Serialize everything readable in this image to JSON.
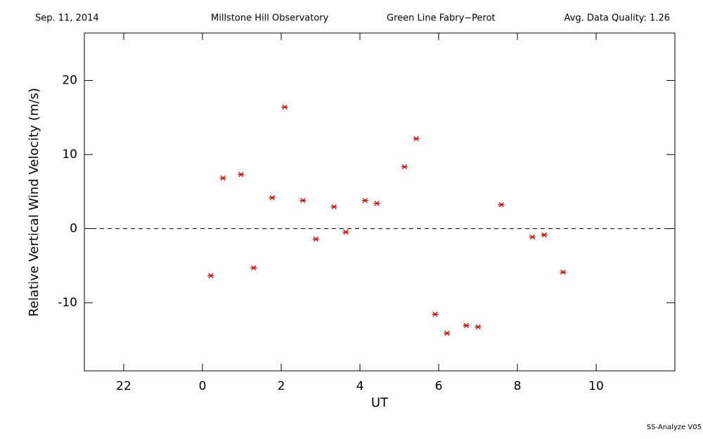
{
  "chart_data": {
    "type": "scatter",
    "header": [
      "Sep. 11, 2014",
      "Millstone Hill Observatory",
      "Green Line Fabry−Perot",
      "Avg. Data Quality: 1.26"
    ],
    "footer": "SS-Analyze V05",
    "xlabel": "UT",
    "ylabel": "Relative Vertical Wind Velocity (m/s)",
    "xlim": [
      -3,
      12
    ],
    "xticks": [
      {
        "value": -2,
        "label": "22"
      },
      0,
      2,
      4,
      6,
      8,
      10
    ],
    "ylim": [
      -19.2,
      26.4
    ],
    "yticks": [
      -10,
      0,
      10,
      20
    ],
    "reference_line": 0,
    "color": "#e00000",
    "x": [
      0.21,
      0.52,
      0.98,
      1.3,
      1.77,
      2.09,
      2.55,
      2.88,
      3.34,
      3.64,
      4.13,
      4.43,
      5.13,
      5.43,
      5.91,
      6.21,
      6.7,
      7.0,
      7.59,
      8.38,
      8.68,
      9.16
    ],
    "values": [
      -6.35,
      6.82,
      7.3,
      -5.3,
      4.17,
      16.4,
      3.79,
      -1.42,
      2.94,
      -0.47,
      3.79,
      3.41,
      8.34,
      12.13,
      -11.56,
      -14.12,
      -13.08,
      -13.27,
      3.22,
      -1.14,
      -0.85,
      -5.88
    ]
  }
}
